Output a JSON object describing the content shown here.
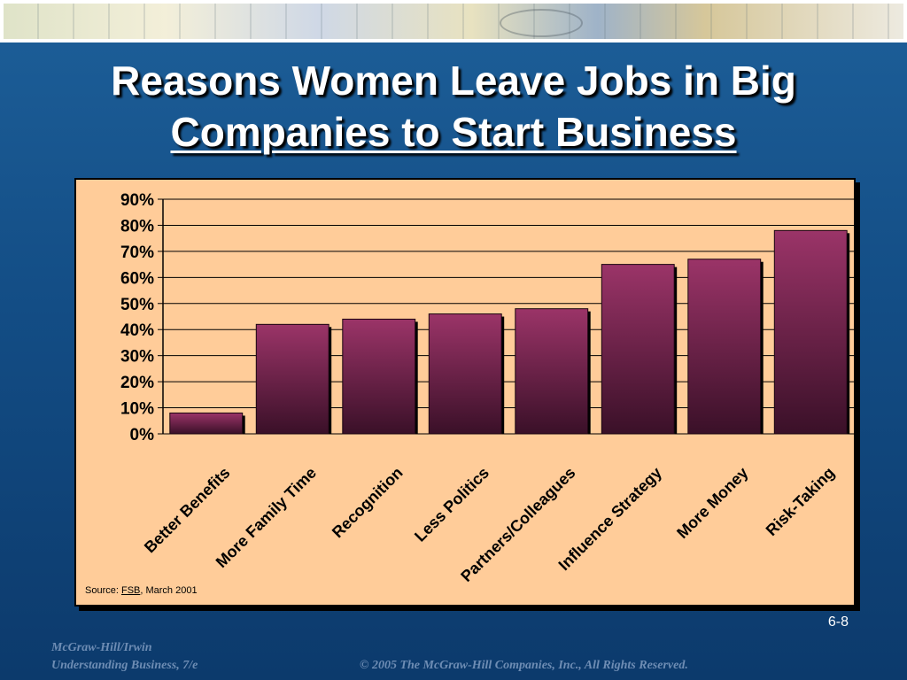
{
  "slide": {
    "title_line1": "Reasons Women Leave Jobs in Big",
    "title_line2": "Companies to Start Business",
    "source_prefix": "Source: ",
    "source_publication": "FSB",
    "source_suffix": ", March 2001",
    "slide_number": "6-8",
    "footer_publisher": "McGraw-Hill/Irwin",
    "footer_book": "Understanding Business, 7/e",
    "footer_copyright": "© 2005 The McGraw-Hill Companies, Inc., All Rights Reserved."
  },
  "colors": {
    "bar_top": "#9b3468",
    "bar_bottom": "#3a1028",
    "plot_background": "#ffcc99",
    "slide_background": "#134d85"
  },
  "chart_data": {
    "type": "bar",
    "categories": [
      "Better Benefits",
      "More Family Time",
      "Recognition",
      "Less Politics",
      "Partners/Colleagues",
      "Influence Strategy",
      "More Money",
      "Risk-Taking"
    ],
    "values": [
      8,
      42,
      44,
      46,
      48,
      65,
      67,
      78
    ],
    "title": "",
    "xlabel": "",
    "ylabel": "",
    "ylim": [
      0,
      90
    ],
    "yticks": [
      "0%",
      "10%",
      "20%",
      "30%",
      "40%",
      "50%",
      "60%",
      "70%",
      "80%",
      "90%"
    ],
    "grid": true,
    "legend": "none"
  }
}
